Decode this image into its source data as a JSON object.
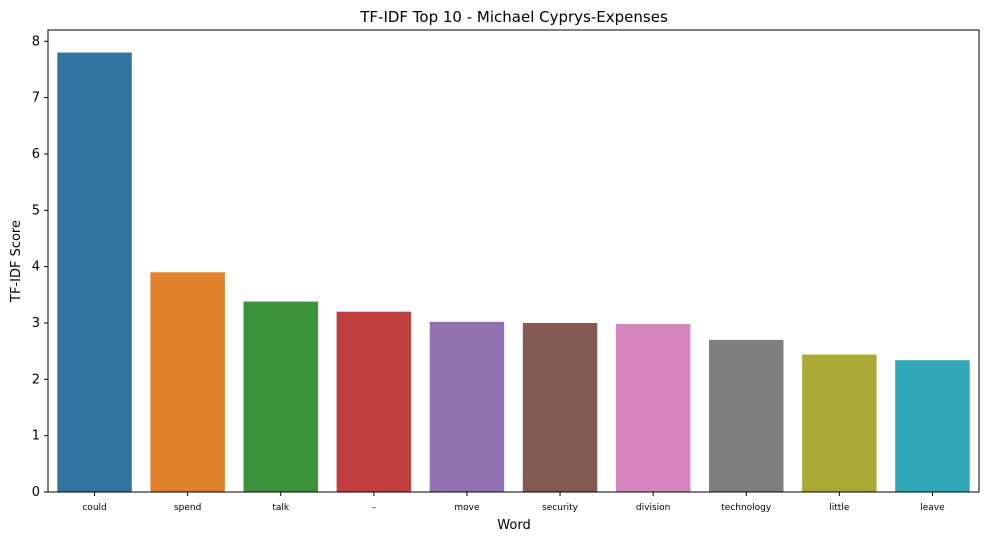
{
  "chart_data": {
    "type": "bar",
    "title": "TF-IDF Top 10 - Michael Cyprys-Expenses",
    "xlabel": "Word",
    "ylabel": "TF-IDF Score",
    "categories": [
      "could",
      "spend",
      "talk",
      "–",
      "move",
      "security",
      "division",
      "technology",
      "little",
      "leave"
    ],
    "values": [
      7.8,
      3.9,
      3.38,
      3.2,
      3.02,
      3.0,
      2.98,
      2.7,
      2.44,
      2.34
    ],
    "colors": [
      "#3274a1",
      "#e1812c",
      "#3a923a",
      "#c03d3e",
      "#9372b2",
      "#845b53",
      "#d684bd",
      "#7f7f7f",
      "#a9aa35",
      "#2ea8b7"
    ],
    "ylim": [
      0,
      8.2
    ],
    "yticks": [
      0,
      1,
      2,
      3,
      4,
      5,
      6,
      7,
      8
    ],
    "grid": false,
    "legend": "none"
  }
}
